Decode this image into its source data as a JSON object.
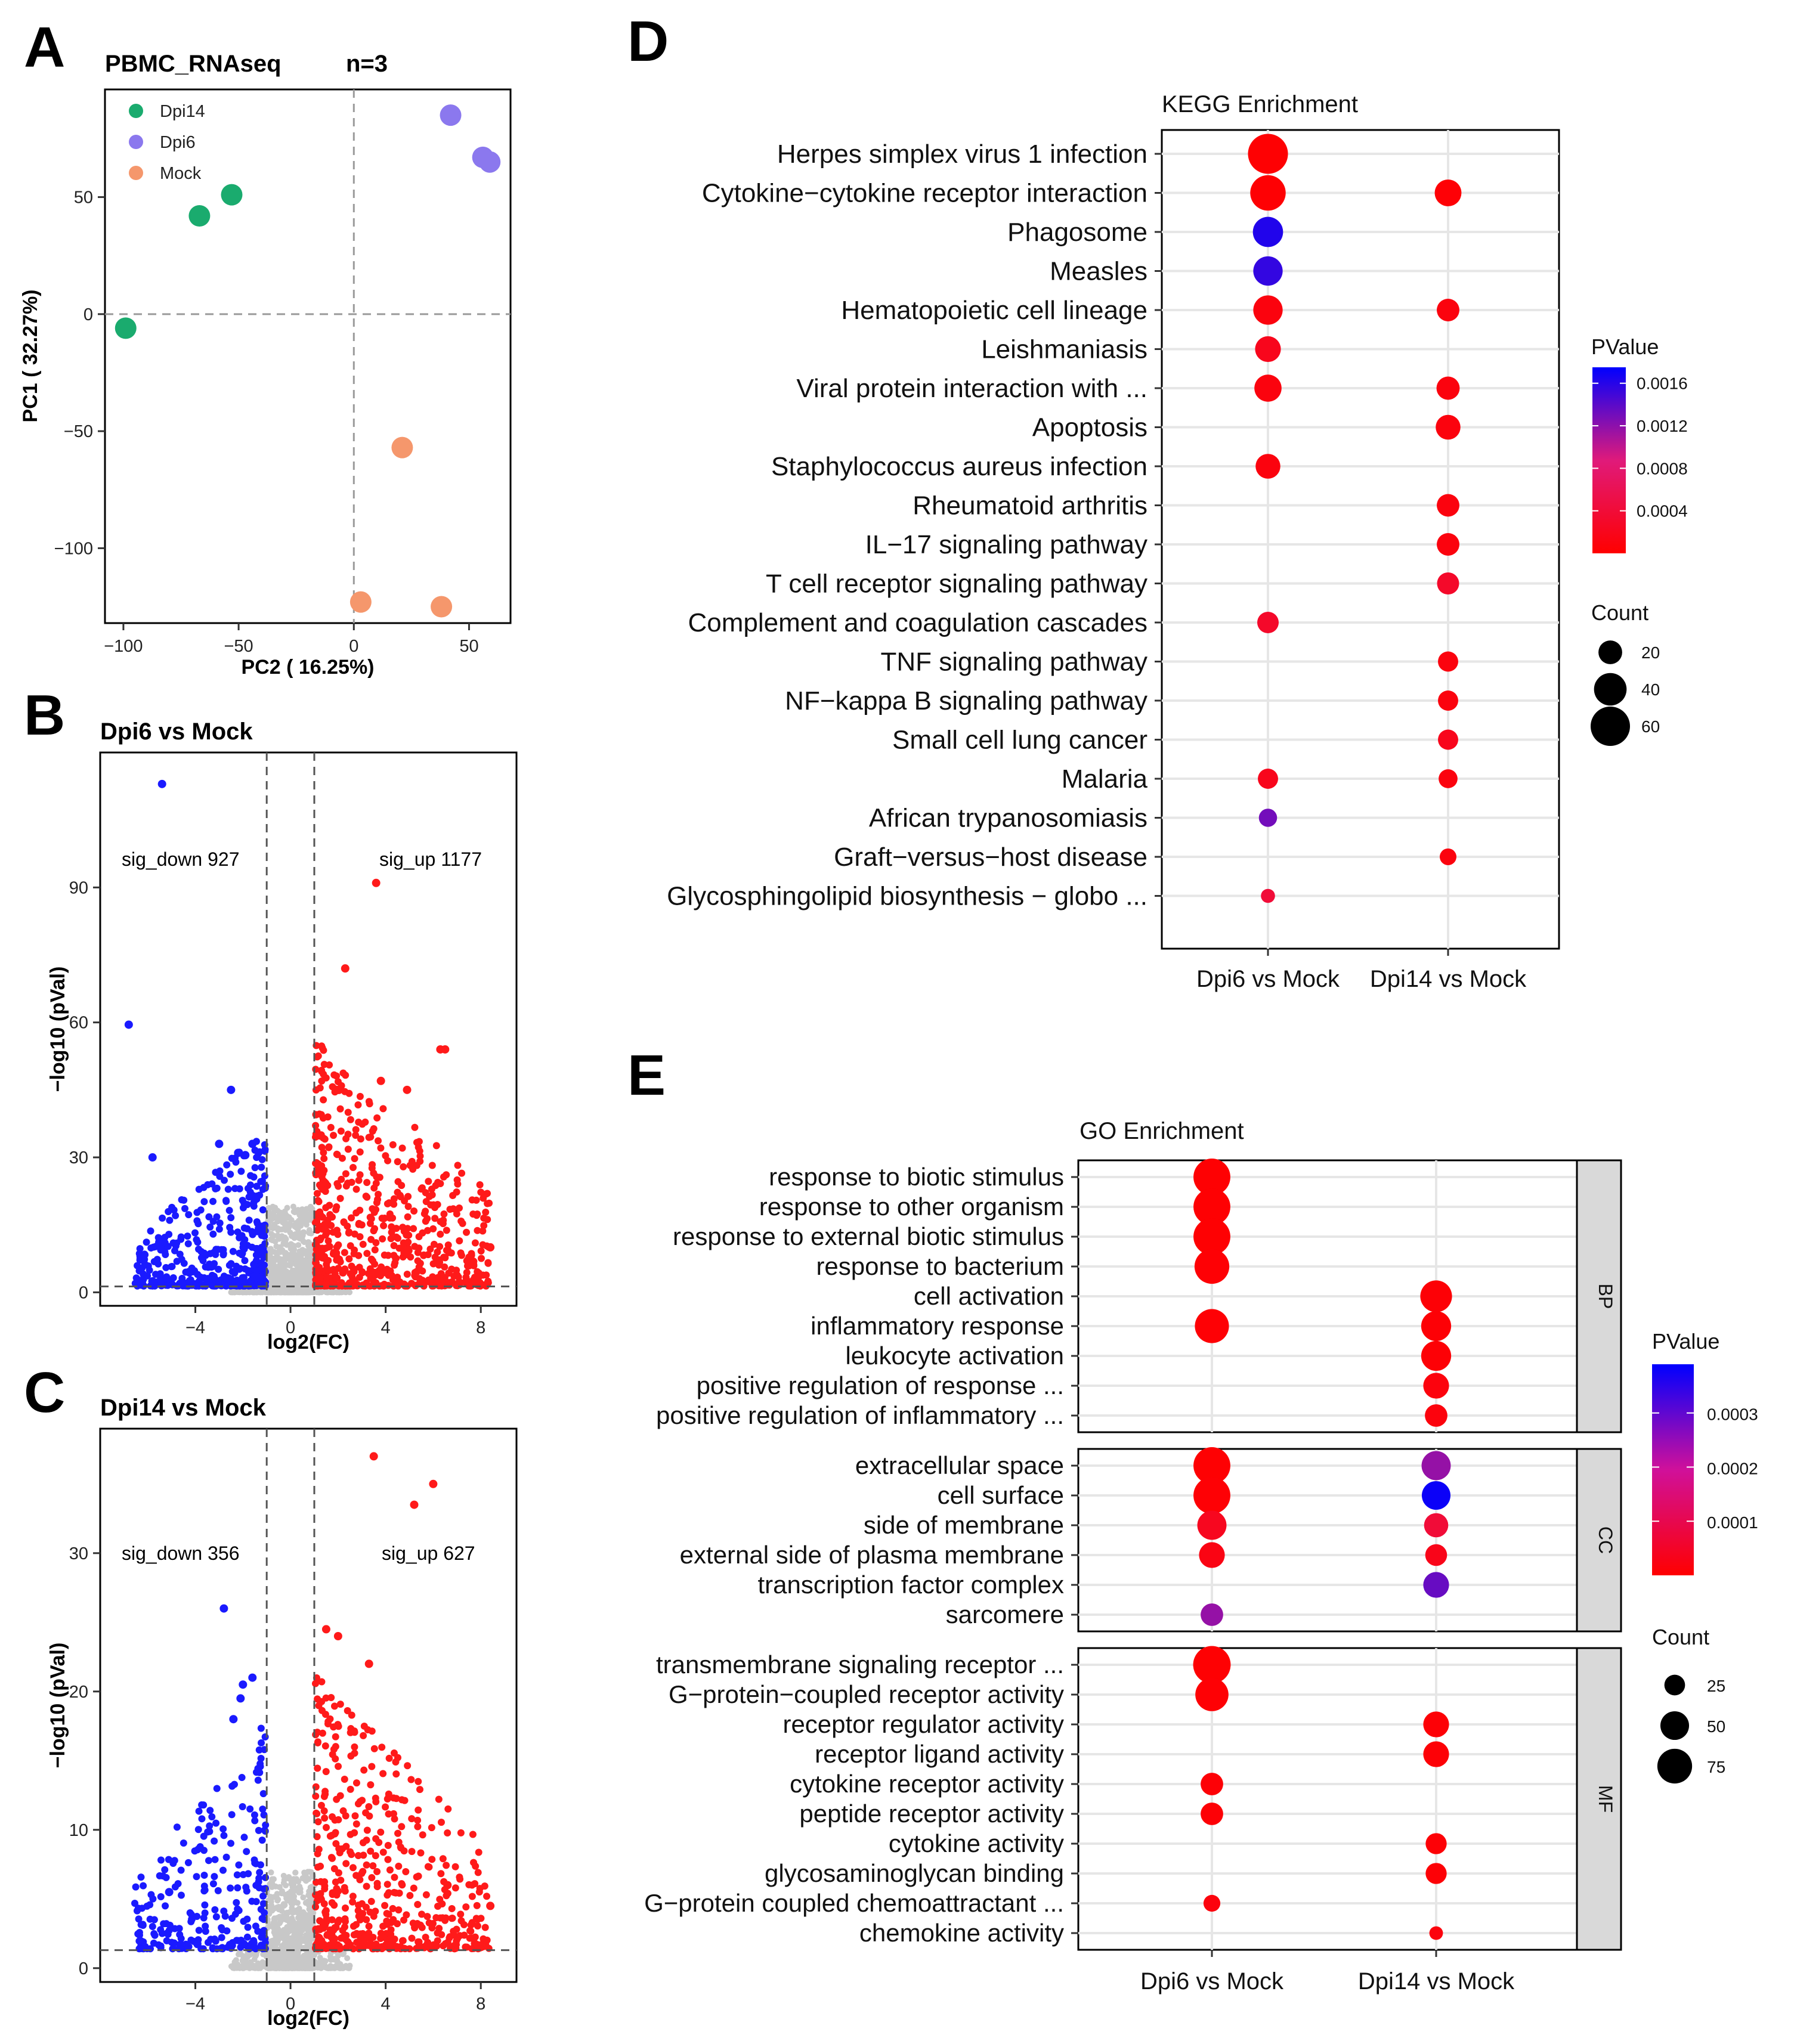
{
  "panels": {
    "A": "A",
    "B": "B",
    "C": "C",
    "D": "D",
    "E": "E"
  },
  "colors": {
    "dpi14": "#1aab6e",
    "dpi6": "#8b78ee",
    "mock": "#f5976c",
    "up": "#ff1a1a",
    "down": "#1a1aff",
    "ns": "#c8c8c8",
    "low_p": "#ff0000",
    "high_p": "#0000ff"
  },
  "chart_data": [
    {
      "id": "pca",
      "type": "scatter",
      "title": "PBMC_RNAseq",
      "subtitle": "n=3",
      "xlabel": "PC2 ( 16.25%)",
      "ylabel": "PC1 ( 32.27%)",
      "xlim": [
        -108,
        68
      ],
      "ylim": [
        -132,
        96
      ],
      "xticks": [
        -100,
        -50,
        0,
        50
      ],
      "xtick_labels": [
        "−100",
        "−50",
        "0",
        "50"
      ],
      "yticks": [
        -100,
        -50,
        0,
        50
      ],
      "ytick_labels": [
        "−100",
        "−50",
        "0",
        "50"
      ],
      "legend": [
        "Dpi14",
        "Dpi6",
        "Mock"
      ],
      "series": [
        {
          "name": "Dpi14",
          "points": [
            [
              -67,
              42
            ],
            [
              -53,
              51
            ],
            [
              -99,
              -6
            ]
          ]
        },
        {
          "name": "Dpi6",
          "points": [
            [
              42,
              85
            ],
            [
              56,
              67
            ],
            [
              59,
              65
            ]
          ]
        },
        {
          "name": "Mock",
          "points": [
            [
              21,
              -57
            ],
            [
              3,
              -123
            ],
            [
              38,
              -125
            ]
          ]
        }
      ]
    },
    {
      "id": "volcano6",
      "type": "scatter",
      "title": "Dpi6 vs Mock",
      "xlabel": "log2(FC)",
      "ylabel": "−log10 (pVal)",
      "xlim": [
        -8,
        9.5
      ],
      "ylim": [
        -3,
        120
      ],
      "xticks": [
        -4,
        0,
        4,
        8
      ],
      "xtick_labels": [
        "−4",
        "0",
        "4",
        "8"
      ],
      "yticks": [
        0,
        30,
        60,
        90
      ],
      "ytick_labels": [
        "0",
        "30",
        "60",
        "90"
      ],
      "sig_down": "sig_down 927",
      "sig_up": "sig_up 1177",
      "thresholds": {
        "fc": 1,
        "p": 1.3
      },
      "highlight_down": [
        [
          -5.4,
          113
        ],
        [
          -6.8,
          59.5
        ],
        [
          -2.5,
          45
        ],
        [
          -5.8,
          30
        ],
        [
          -3.0,
          33
        ],
        [
          -2.2,
          31
        ],
        [
          -1.6,
          33
        ],
        [
          -1.9,
          30.5
        ]
      ],
      "highlight_up": [
        [
          3.6,
          91
        ],
        [
          2.3,
          72
        ],
        [
          6.3,
          54
        ],
        [
          6.5,
          54
        ],
        [
          3.8,
          47
        ],
        [
          2.0,
          45
        ],
        [
          4.9,
          45
        ],
        [
          8.4,
          10
        ],
        [
          7.5,
          6
        ]
      ]
    },
    {
      "id": "volcano14",
      "type": "scatter",
      "title": "Dpi14 vs Mock",
      "xlabel": "log2(FC)",
      "ylabel": "−log10 (pVal)",
      "xlim": [
        -8,
        9.5
      ],
      "ylim": [
        -1,
        39
      ],
      "xticks": [
        -4,
        0,
        4,
        8
      ],
      "xtick_labels": [
        "−4",
        "0",
        "4",
        "8"
      ],
      "yticks": [
        0,
        10,
        20,
        30
      ],
      "ytick_labels": [
        "0",
        "10",
        "20",
        "30"
      ],
      "sig_down": "sig_down 356",
      "sig_up": "sig_up 627",
      "thresholds": {
        "fc": 1,
        "p": 1.3
      },
      "highlight_down": [
        [
          -2.8,
          26
        ],
        [
          -2.0,
          20.5
        ],
        [
          -2.1,
          19.5
        ],
        [
          -2.4,
          18
        ],
        [
          -1.6,
          21
        ],
        [
          -5.1,
          5.5
        ]
      ],
      "highlight_up": [
        [
          3.5,
          37
        ],
        [
          6.0,
          35
        ],
        [
          5.2,
          33.5
        ],
        [
          1.5,
          24.5
        ],
        [
          2.0,
          24
        ],
        [
          3.3,
          22
        ],
        [
          6.6,
          6
        ],
        [
          8.4,
          4.5
        ]
      ]
    },
    {
      "id": "kegg",
      "type": "bubble",
      "title": "KEGG Enrichment",
      "groups": [
        "Dpi6 vs Mock",
        "Dpi14 vs Mock"
      ],
      "categories": [
        "Herpes simplex virus 1 infection",
        "Cytokine−cytokine receptor interaction",
        "Phagosome",
        "Measles",
        "Hematopoietic cell lineage",
        "Leishmaniasis",
        "Viral protein interaction with ...",
        "Apoptosis",
        "Staphylococcus aureus infection",
        "Rheumatoid arthritis",
        "IL−17 signaling pathway",
        "T cell receptor signaling pathway",
        "Complement and coagulation cascades",
        "TNF signaling pathway",
        "NF−kappa B signaling pathway",
        "Small cell lung cancer",
        "Malaria",
        "African trypanosomiasis",
        "Graft−versus−host disease",
        "Glycosphingolipid biosynthesis − globo ..."
      ],
      "points": [
        {
          "cat": 0,
          "group": 0,
          "count": 62,
          "p": 2e-05
        },
        {
          "cat": 1,
          "group": 0,
          "count": 48,
          "p": 3e-05
        },
        {
          "cat": 1,
          "group": 1,
          "count": 26,
          "p": 4e-05
        },
        {
          "cat": 2,
          "group": 0,
          "count": 34,
          "p": 0.00162
        },
        {
          "cat": 3,
          "group": 0,
          "count": 32,
          "p": 0.00155
        },
        {
          "cat": 4,
          "group": 0,
          "count": 32,
          "p": 0.0001
        },
        {
          "cat": 4,
          "group": 1,
          "count": 18,
          "p": 0.0001
        },
        {
          "cat": 5,
          "group": 0,
          "count": 24,
          "p": 0.0002
        },
        {
          "cat": 6,
          "group": 0,
          "count": 27,
          "p": 0.0001
        },
        {
          "cat": 6,
          "group": 1,
          "count": 19,
          "p": 0.0001
        },
        {
          "cat": 7,
          "group": 1,
          "count": 22,
          "p": 0.0001
        },
        {
          "cat": 8,
          "group": 0,
          "count": 22,
          "p": 0.0001
        },
        {
          "cat": 9,
          "group": 1,
          "count": 18,
          "p": 0.0001
        },
        {
          "cat": 10,
          "group": 1,
          "count": 18,
          "p": 0.0001
        },
        {
          "cat": 11,
          "group": 1,
          "count": 17,
          "p": 0.0003
        },
        {
          "cat": 12,
          "group": 0,
          "count": 16,
          "p": 0.0003
        },
        {
          "cat": 13,
          "group": 1,
          "count": 14,
          "p": 0.0001
        },
        {
          "cat": 14,
          "group": 1,
          "count": 14,
          "p": 0.0001
        },
        {
          "cat": 15,
          "group": 1,
          "count": 14,
          "p": 0.0002
        },
        {
          "cat": 16,
          "group": 0,
          "count": 14,
          "p": 0.0002
        },
        {
          "cat": 16,
          "group": 1,
          "count": 12,
          "p": 0.0001
        },
        {
          "cat": 17,
          "group": 0,
          "count": 11,
          "p": 0.0013
        },
        {
          "cat": 18,
          "group": 1,
          "count": 9,
          "p": 0.0001
        },
        {
          "cat": 19,
          "group": 0,
          "count": 6,
          "p": 0.0004
        }
      ],
      "legend": {
        "color_title": "PValue",
        "color_ticks": [
          "0.0016",
          "0.0012",
          "0.0008",
          "0.0004"
        ],
        "color_values": [
          0.0016,
          0.0012,
          0.0008,
          0.0004
        ],
        "color_range": [
          0.0,
          0.00175
        ],
        "size_title": "Count",
        "size_values": [
          20,
          40,
          60
        ],
        "size_labels": [
          "20",
          "40",
          "60"
        ],
        "size_range": [
          6,
          62
        ]
      }
    },
    {
      "id": "go",
      "type": "bubble",
      "title": "GO Enrichment",
      "groups": [
        "Dpi6 vs Mock",
        "Dpi14 vs Mock"
      ],
      "facets": [
        {
          "name": "BP",
          "categories": [
            "response to biotic stimulus",
            "response to other organism",
            "response to external biotic stimulus",
            "response to bacterium",
            "cell activation",
            "inflammatory response",
            "leukocyte activation",
            "positive regulation of response ...",
            "positive regulation of inflammatory ..."
          ]
        },
        {
          "name": "CC",
          "categories": [
            "extracellular space",
            "cell surface",
            "side of membrane",
            "external side of plasma membrane",
            "transcription factor complex",
            "sarcomere"
          ]
        },
        {
          "name": "MF",
          "categories": [
            "transmembrane signaling receptor ...",
            "G−protein−coupled receptor activity",
            "receptor regulator activity",
            "receptor ligand activity",
            "cytokine receptor activity",
            "peptide receptor activity",
            "cytokine activity",
            "glycosaminoglycan binding",
            "G−protein coupled chemoattractant ...",
            "chemokine activity"
          ]
        }
      ],
      "points": [
        {
          "facet": 0,
          "cat": 0,
          "group": 0,
          "count": 85,
          "p": 5e-06
        },
        {
          "facet": 0,
          "cat": 1,
          "group": 0,
          "count": 85,
          "p": 5e-06
        },
        {
          "facet": 0,
          "cat": 2,
          "group": 0,
          "count": 85,
          "p": 5e-06
        },
        {
          "facet": 0,
          "cat": 3,
          "group": 0,
          "count": 75,
          "p": 8e-06
        },
        {
          "facet": 0,
          "cat": 4,
          "group": 1,
          "count": 62,
          "p": 1e-05
        },
        {
          "facet": 0,
          "cat": 5,
          "group": 0,
          "count": 72,
          "p": 8e-06
        },
        {
          "facet": 0,
          "cat": 5,
          "group": 1,
          "count": 55,
          "p": 1e-05
        },
        {
          "facet": 0,
          "cat": 6,
          "group": 1,
          "count": 55,
          "p": 1e-05
        },
        {
          "facet": 0,
          "cat": 7,
          "group": 1,
          "count": 40,
          "p": 2e-05
        },
        {
          "facet": 0,
          "cat": 8,
          "group": 1,
          "count": 30,
          "p": 2e-05
        },
        {
          "facet": 1,
          "cat": 0,
          "group": 0,
          "count": 85,
          "p": 5e-06
        },
        {
          "facet": 1,
          "cat": 0,
          "group": 1,
          "count": 52,
          "p": 0.00026
        },
        {
          "facet": 1,
          "cat": 1,
          "group": 0,
          "count": 85,
          "p": 8e-06
        },
        {
          "facet": 1,
          "cat": 1,
          "group": 1,
          "count": 50,
          "p": 0.00038
        },
        {
          "facet": 1,
          "cat": 2,
          "group": 0,
          "count": 52,
          "p": 5e-05
        },
        {
          "facet": 1,
          "cat": 2,
          "group": 1,
          "count": 35,
          "p": 9e-05
        },
        {
          "facet": 1,
          "cat": 3,
          "group": 0,
          "count": 40,
          "p": 3e-05
        },
        {
          "facet": 1,
          "cat": 3,
          "group": 1,
          "count": 28,
          "p": 4e-05
        },
        {
          "facet": 1,
          "cat": 4,
          "group": 1,
          "count": 40,
          "p": 0.0003
        },
        {
          "facet": 1,
          "cat": 5,
          "group": 0,
          "count": 30,
          "p": 0.00026
        },
        {
          "facet": 2,
          "cat": 0,
          "group": 0,
          "count": 88,
          "p": 5e-06
        },
        {
          "facet": 2,
          "cat": 1,
          "group": 0,
          "count": 68,
          "p": 8e-06
        },
        {
          "facet": 2,
          "cat": 2,
          "group": 1,
          "count": 40,
          "p": 1e-05
        },
        {
          "facet": 2,
          "cat": 3,
          "group": 1,
          "count": 40,
          "p": 1e-05
        },
        {
          "facet": 2,
          "cat": 4,
          "group": 0,
          "count": 30,
          "p": 1e-05
        },
        {
          "facet": 2,
          "cat": 5,
          "group": 0,
          "count": 30,
          "p": 1e-05
        },
        {
          "facet": 2,
          "cat": 6,
          "group": 1,
          "count": 26,
          "p": 1e-05
        },
        {
          "facet": 2,
          "cat": 7,
          "group": 1,
          "count": 26,
          "p": 1e-05
        },
        {
          "facet": 2,
          "cat": 8,
          "group": 0,
          "count": 16,
          "p": 2e-05
        },
        {
          "facet": 2,
          "cat": 9,
          "group": 1,
          "count": 10,
          "p": 2e-05
        }
      ],
      "legend": {
        "color_title": "PValue",
        "color_ticks": [
          "0.0003",
          "0.0002",
          "0.0001"
        ],
        "color_values": [
          0.0003,
          0.0002,
          0.0001
        ],
        "color_range": [
          0.0,
          0.00039
        ],
        "size_title": "Count",
        "size_values": [
          25,
          50,
          75
        ],
        "size_labels": [
          "25",
          "50",
          "75"
        ],
        "size_range": [
          8,
          90
        ]
      }
    }
  ]
}
